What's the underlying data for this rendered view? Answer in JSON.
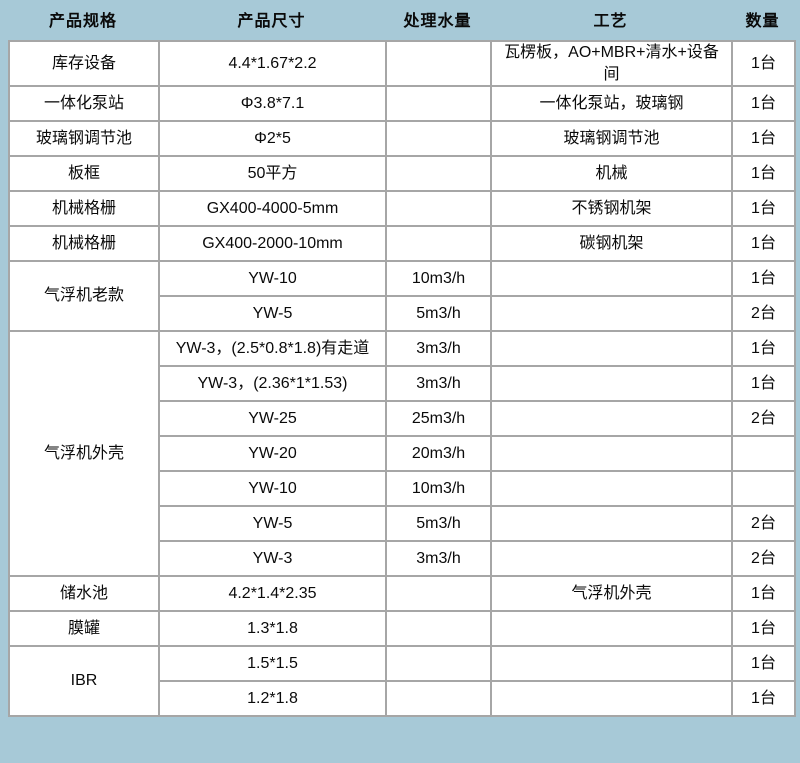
{
  "colors": {
    "background": "#a7c9d7",
    "cell_border": "#a6a6a6",
    "cell_background": "#ffffff",
    "text": "#0a0a0a"
  },
  "table": {
    "headers": [
      "产品规格",
      "产品尺寸",
      "处理水量",
      "工艺",
      "数量"
    ],
    "column_keys": [
      "spec",
      "size",
      "flow",
      "process",
      "qty"
    ],
    "rows": [
      [
        "库存设备",
        "4.4*1.67*2.2",
        "",
        "瓦楞板，AO+MBR+清水+设备间",
        "1台"
      ],
      [
        "一体化泵站",
        "Φ3.8*7.1",
        "",
        "一体化泵站，玻璃钢",
        "1台"
      ],
      [
        "玻璃钢调节池",
        "Φ2*5",
        "",
        "玻璃钢调节池",
        "1台"
      ],
      [
        "板框",
        "50平方",
        "",
        "机械",
        "1台"
      ],
      [
        "机械格栅",
        "GX400-4000-5mm",
        "",
        "不锈钢机架",
        "1台"
      ],
      [
        "机械格栅",
        "GX400-2000-10mm",
        "",
        "碳钢机架",
        "1台"
      ],
      [
        {
          "text": "气浮机老款",
          "rowspan": 2
        },
        "YW-10",
        "10m3/h",
        "",
        "1台"
      ],
      [
        null,
        "YW-5",
        "5m3/h",
        "",
        "2台"
      ],
      [
        {
          "text": "气浮机外壳",
          "rowspan": 7
        },
        "YW-3，(2.5*0.8*1.8)有走道",
        "3m3/h",
        "",
        "1台"
      ],
      [
        null,
        "YW-3，(2.36*1*1.53)",
        "3m3/h",
        "",
        "1台"
      ],
      [
        null,
        "YW-25",
        "25m3/h",
        "",
        "2台"
      ],
      [
        null,
        "YW-20",
        "20m3/h",
        "",
        ""
      ],
      [
        null,
        "YW-10",
        "10m3/h",
        "",
        ""
      ],
      [
        null,
        "YW-5",
        "5m3/h",
        "",
        "2台"
      ],
      [
        null,
        "YW-3",
        "3m3/h",
        "",
        "2台"
      ],
      [
        "储水池",
        "4.2*1.4*2.35",
        "",
        "气浮机外壳",
        "1台"
      ],
      [
        "膜罐",
        "1.3*1.8",
        "",
        "",
        "1台"
      ],
      [
        {
          "text": "IBR",
          "rowspan": 2
        },
        "1.5*1.5",
        "",
        "",
        "1台"
      ],
      [
        null,
        "1.2*1.8",
        "",
        "",
        "1台"
      ]
    ]
  }
}
